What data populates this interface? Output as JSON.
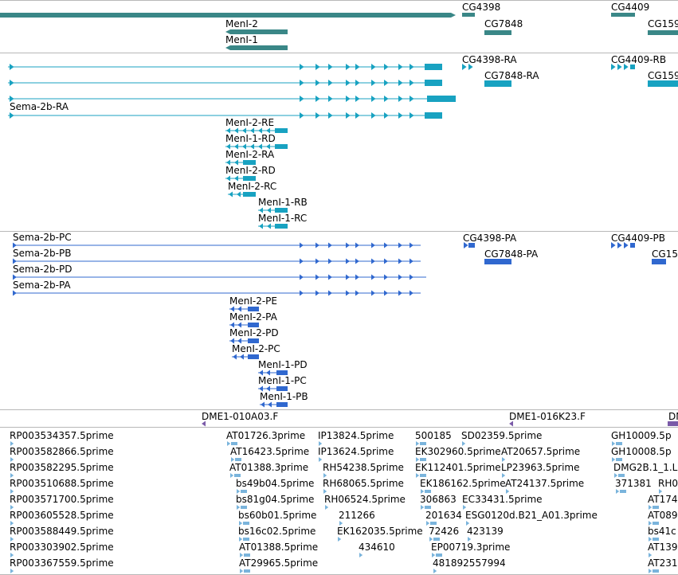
{
  "colors": {
    "gene": "#3a8787",
    "transcript": "#18a2c1",
    "protein": "#3068cf",
    "clone": "#7a5aa8",
    "est": "#7ab4dc",
    "separator": "#b8b8b8"
  },
  "tracks": {
    "genes": {
      "labels": [
        "CG4398",
        "CG4409",
        "MenI-2",
        "CG7848",
        "CG159",
        "MenI-1"
      ]
    },
    "transcripts": {
      "labels": [
        "CG4398-RA",
        "CG4409-RB",
        "CG7848-RA",
        "CG159",
        "Sema-2b-RA",
        "MenI-2-RE",
        "MenI-1-RD",
        "MenI-2-RA",
        "MenI-2-RD",
        "MenI-2-RC",
        "MenI-1-RB",
        "MenI-1-RC"
      ]
    },
    "proteins": {
      "labels": [
        "Sema-2b-PC",
        "CG4398-PA",
        "CG4409-PB",
        "Sema-2b-PB",
        "CG7848-PA",
        "CG15",
        "Sema-2b-PD",
        "Sema-2b-PA",
        "MenI-2-PE",
        "MenI-2-PA",
        "MenI-2-PD",
        "MenI-2-PC",
        "MenI-1-PD",
        "MenI-1-PC",
        "MenI-1-PB"
      ]
    },
    "clones": {
      "labels": [
        "DME1-010A03.F",
        "DME1-016K23.F",
        "DN"
      ]
    },
    "ests": {
      "labels": [
        "RP003534357.5prime",
        "AT01726.3prime",
        "IP13824.5prime",
        "500185",
        "SD02359.5prime",
        "GH10009.5p",
        "RP003582866.5prime",
        "AT16423.5prime",
        "IP13624.5prime",
        "EK302960.5prime",
        "AT20657.5prime",
        "GH10008.5p",
        "RP003582295.5prime",
        "AT01388.3prime",
        "RH54238.5prime",
        "EK112401.5prime",
        "LP23963.5prime",
        "DMG2B.1_1.L",
        "RP003510688.5prime",
        "bs49b04.5prime",
        "RH68065.5prime",
        "EK186162.5prime",
        "AT24137.5prime",
        "371381",
        "RH0",
        "RP003571700.5prime",
        "bs81g04.5prime",
        "RH06524.5prime",
        "306863",
        "EC33431.5prime",
        "AT174",
        "RP003605528.5prime",
        "bs60b01.5prime",
        "211266",
        "201634",
        "ESG0120d.B21_A01.3prime",
        "AT089",
        "RP003588449.5prime",
        "bs16c02.5prime",
        "EK162035.5prime",
        "72426",
        "423139",
        "bs41c",
        "RP003303902.5prime",
        "AT01388.5prime",
        "434610",
        "EP00719.3prime",
        "AT139",
        "RP003367559.5prime",
        "AT29965.5prime",
        "481892557994",
        "AT231"
      ]
    }
  }
}
